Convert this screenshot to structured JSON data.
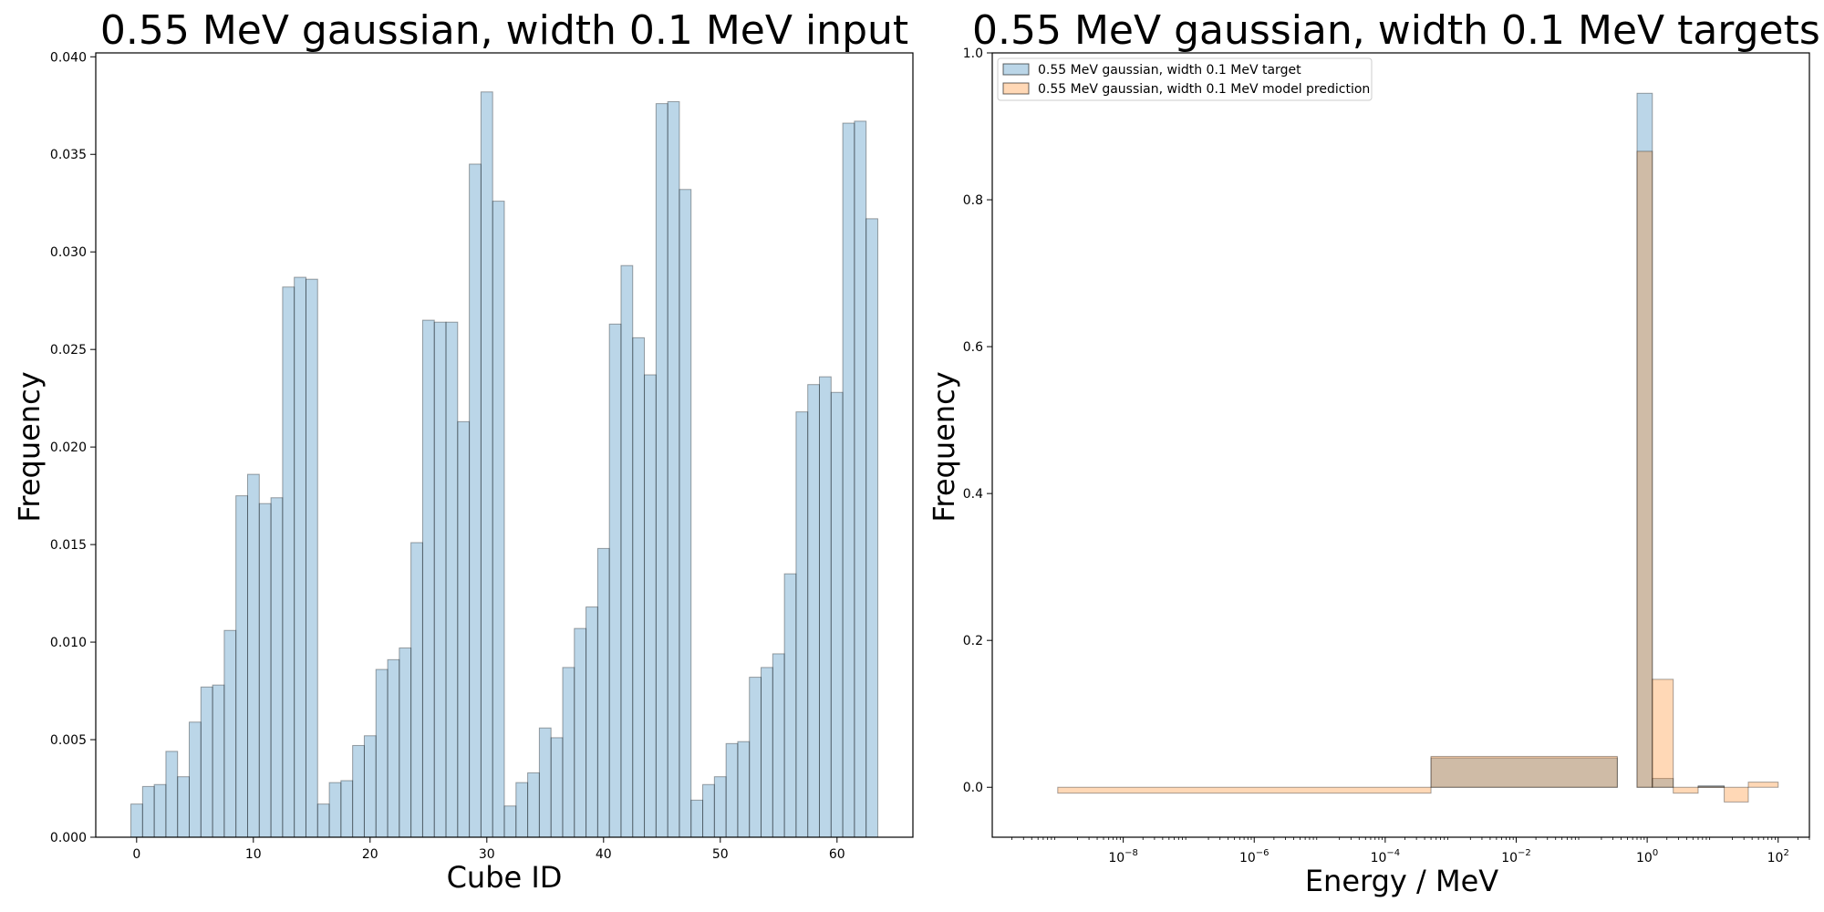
{
  "chart_data": [
    {
      "type": "bar",
      "title": "0.55 MeV gaussian, width 0.1 MeV input",
      "xlabel": "Cube ID",
      "ylabel": "Frequency",
      "xlim": [
        -3.5,
        66.5
      ],
      "ylim": [
        0,
        0.0402
      ],
      "xticks": [
        0,
        10,
        20,
        30,
        40,
        50,
        60
      ],
      "yticks": [
        0.0,
        0.005,
        0.01,
        0.015,
        0.02,
        0.025,
        0.03,
        0.035,
        0.04
      ],
      "ytick_labels": [
        "0.000",
        "0.005",
        "0.010",
        "0.015",
        "0.020",
        "0.025",
        "0.030",
        "0.035",
        "0.040"
      ],
      "grid": false,
      "color": "#1f77b4",
      "categories": [
        0,
        1,
        2,
        3,
        4,
        5,
        6,
        7,
        8,
        9,
        10,
        11,
        12,
        13,
        14,
        15,
        16,
        17,
        18,
        19,
        20,
        21,
        22,
        23,
        24,
        25,
        26,
        27,
        28,
        29,
        30,
        31,
        32,
        33,
        34,
        35,
        36,
        37,
        38,
        39,
        40,
        41,
        42,
        43,
        44,
        45,
        46,
        47,
        48,
        49,
        50,
        51,
        52,
        53,
        54,
        55,
        56,
        57,
        58,
        59,
        60,
        61,
        62,
        63
      ],
      "values": [
        0.0017,
        0.0026,
        0.0027,
        0.0044,
        0.0031,
        0.0059,
        0.0077,
        0.0078,
        0.0106,
        0.0175,
        0.0186,
        0.0171,
        0.0174,
        0.0282,
        0.0287,
        0.0286,
        0.0017,
        0.0028,
        0.0029,
        0.0047,
        0.0052,
        0.0086,
        0.0091,
        0.0097,
        0.0151,
        0.0265,
        0.0264,
        0.0264,
        0.0213,
        0.0345,
        0.0382,
        0.0326,
        0.0016,
        0.0028,
        0.0033,
        0.0056,
        0.0051,
        0.0087,
        0.0107,
        0.0118,
        0.0148,
        0.0263,
        0.0293,
        0.0256,
        0.0237,
        0.0376,
        0.0377,
        0.0332,
        0.0019,
        0.0027,
        0.0031,
        0.0048,
        0.0049,
        0.0082,
        0.0087,
        0.0094,
        0.0135,
        0.0218,
        0.0232,
        0.0236,
        0.0228,
        0.0366,
        0.0367,
        0.0317
      ]
    },
    {
      "type": "bar",
      "title": "0.55 MeV gaussian, width 0.1 MeV targets",
      "xlabel": "Energy / MeV",
      "ylabel": "Frequency",
      "xscale": "log",
      "xlim": [
        1e-10,
        300
      ],
      "ylim": [
        -0.068,
        1.0
      ],
      "xticks": [
        1e-08,
        1e-06,
        0.0001,
        0.01,
        1,
        100
      ],
      "xtick_labels": [
        {
          "base": "10",
          "exp": "−8"
        },
        {
          "base": "10",
          "exp": "−6"
        },
        {
          "base": "10",
          "exp": "−4"
        },
        {
          "base": "10",
          "exp": "−2"
        },
        {
          "base": "10",
          "exp": "0"
        },
        {
          "base": "10",
          "exp": "2"
        }
      ],
      "yticks": [
        0.0,
        0.2,
        0.4,
        0.6,
        0.8,
        1.0
      ],
      "ytick_labels": [
        "0.0",
        "0.2",
        "0.4",
        "0.6",
        "0.8",
        "1.0"
      ],
      "grid": false,
      "legend_position": "top-left",
      "bin_edges": [
        1e-09,
        0.0005,
        0.35,
        0.7,
        1.2,
        2.5,
        6,
        15,
        35,
        100
      ],
      "series": [
        {
          "name": "0.55 MeV gaussian, width 0.1 MeV target",
          "color": "#1f77b4",
          "values": [
            0.0,
            0.04,
            0.0,
            0.945,
            0.012,
            0.0,
            0.002,
            0.0,
            0.0
          ]
        },
        {
          "name": "0.55 MeV gaussian, width 0.1 MeV model prediction",
          "color": "#ff7f0e",
          "values": [
            -0.008,
            0.042,
            0.0,
            0.866,
            0.147,
            -0.008,
            0.001,
            -0.02,
            0.007
          ]
        }
      ]
    }
  ]
}
